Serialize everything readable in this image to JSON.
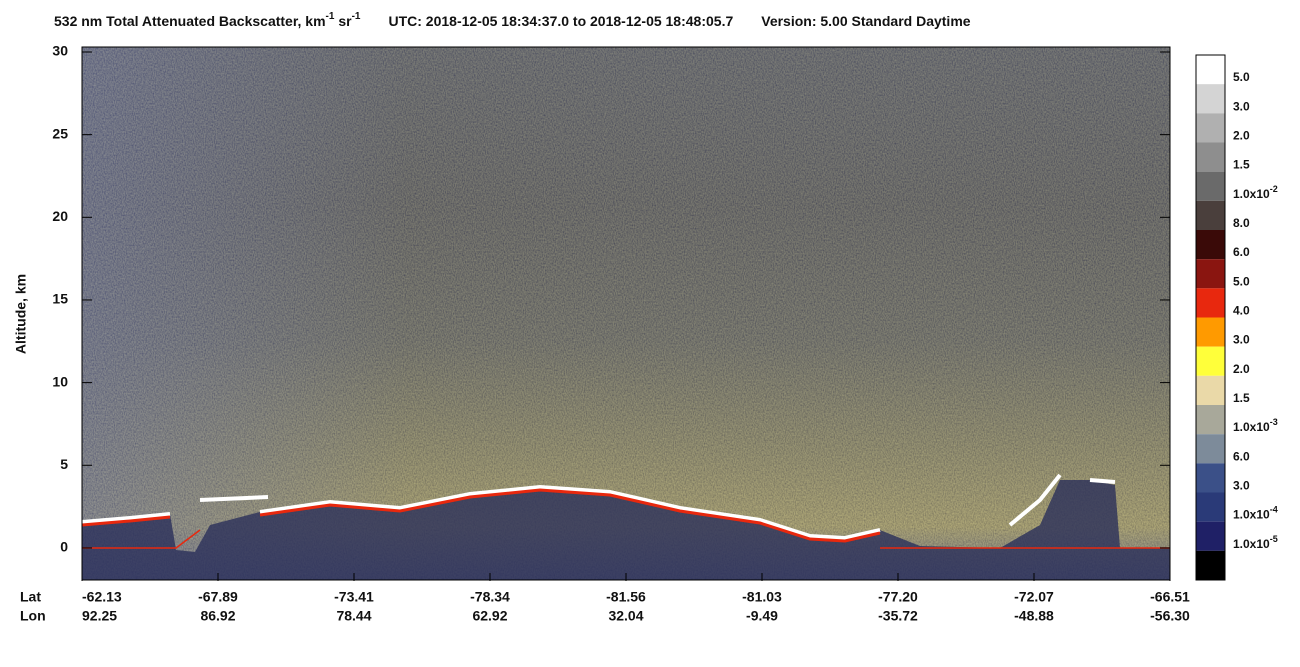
{
  "chart_data": {
    "type": "heatmap",
    "title_parts": [
      "532 nm Total Attenuated Backscatter, km",
      "-1",
      " sr",
      "-1",
      "UTC:  2018-12-05 18:34:37.0  to  2018-12-05 18:48:05.7",
      "Version: 5.00  Standard  Daytime"
    ],
    "y_label": "Altitude, km",
    "ylim": [
      -2,
      30
    ],
    "yticks": [
      0,
      5,
      10,
      15,
      20,
      25,
      30
    ],
    "x_row_labels": [
      "Lat",
      "Lon"
    ],
    "lat": [
      "-62.13",
      "-67.89",
      "-73.41",
      "-78.34",
      "-81.56",
      "-81.03",
      "-77.20",
      "-72.07",
      "-66.51"
    ],
    "lon": [
      "92.25",
      "86.92",
      "78.44",
      "62.92",
      "32.04",
      "-9.49",
      "-35.72",
      "-48.88",
      "-56.30"
    ],
    "colorbar_colors": [
      "#ffffff",
      "#d4d4d4",
      "#b0b0b0",
      "#8e8e8e",
      "#6a6a6a",
      "#4a3f3c",
      "#3a0a08",
      "#8a1510",
      "#e8280e",
      "#ff9a00",
      "#ffff3a",
      "#ead9a8",
      "#a8a89a",
      "#7d8b9a",
      "#3b5088",
      "#2a3a78",
      "#1f2066",
      "#000000"
    ],
    "colorbar_labels": [
      {
        "text": "5.0"
      },
      {
        "text": "3.0"
      },
      {
        "text": "2.0"
      },
      {
        "text": "1.5"
      },
      {
        "text": "1.0x10",
        "exp": "-2"
      },
      {
        "text": "8.0"
      },
      {
        "text": "6.0"
      },
      {
        "text": "5.0"
      },
      {
        "text": "4.0"
      },
      {
        "text": "3.0"
      },
      {
        "text": "2.0"
      },
      {
        "text": "1.5"
      },
      {
        "text": "1.0x10",
        "exp": "-3"
      },
      {
        "text": "6.0"
      },
      {
        "text": "3.0"
      },
      {
        "text": "1.0x10",
        "exp": "-4"
      },
      {
        "text": "1.0x10",
        "exp": "-5"
      }
    ]
  }
}
